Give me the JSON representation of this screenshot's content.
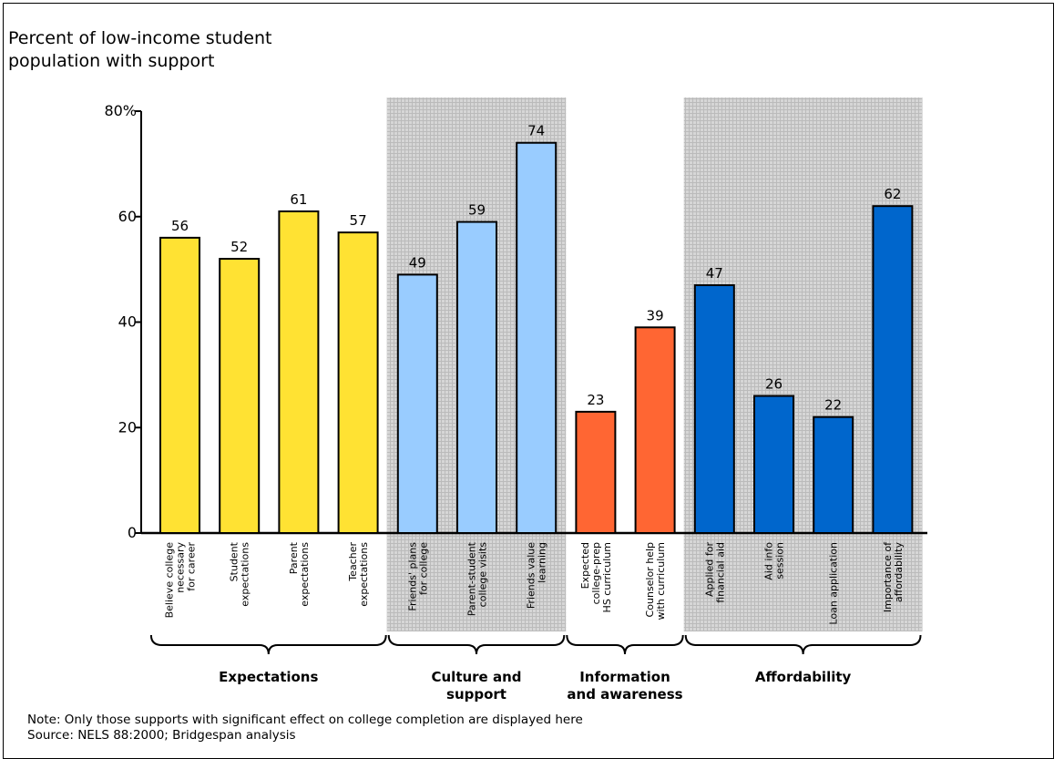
{
  "chart_data": {
    "type": "bar",
    "ylabel": "Percent of low-income student population with support",
    "ylim": [
      0,
      80
    ],
    "yticks": [
      {
        "value": 0,
        "label": "0"
      },
      {
        "value": 20,
        "label": "20"
      },
      {
        "value": 40,
        "label": "40"
      },
      {
        "value": 60,
        "label": "60"
      },
      {
        "value": 80,
        "label": "80%"
      }
    ],
    "categories": [
      {
        "lines": [
          "Believe college",
          "necessary",
          "for career"
        ],
        "value": 56,
        "group": "Expectations"
      },
      {
        "lines": [
          "Student",
          "expectations"
        ],
        "value": 52,
        "group": "Expectations"
      },
      {
        "lines": [
          "Parent",
          "expectations"
        ],
        "value": 61,
        "group": "Expectations"
      },
      {
        "lines": [
          "Teacher",
          "expectations"
        ],
        "value": 57,
        "group": "Expectations"
      },
      {
        "lines": [
          "Friends' plans",
          "for college"
        ],
        "value": 49,
        "group": "Culture and support"
      },
      {
        "lines": [
          "Parent-student",
          "college visits"
        ],
        "value": 59,
        "group": "Culture and support"
      },
      {
        "lines": [
          "Friends value",
          "learning"
        ],
        "value": 74,
        "group": "Culture and support"
      },
      {
        "lines": [
          "Expected",
          "college-prep",
          "HS curriculum"
        ],
        "value": 23,
        "group": "Information and awareness"
      },
      {
        "lines": [
          "Counselor help",
          "with curriculum"
        ],
        "value": 39,
        "group": "Information and awareness"
      },
      {
        "lines": [
          "Applied for",
          "financial aid"
        ],
        "value": 47,
        "group": "Affordability"
      },
      {
        "lines": [
          "Aid info",
          "session"
        ],
        "value": 26,
        "group": "Affordability"
      },
      {
        "lines": [
          "Loan application"
        ],
        "value": 22,
        "group": "Affordability"
      },
      {
        "lines": [
          "Importance of",
          "affordability"
        ],
        "value": 62,
        "group": "Affordability"
      }
    ],
    "groups": [
      {
        "lines": [
          "Expectations"
        ],
        "color": "#ffe233",
        "shaded": false
      },
      {
        "lines": [
          "Culture and",
          "support"
        ],
        "color": "#99ccff",
        "shaded": true
      },
      {
        "lines": [
          "Information",
          "and awareness"
        ],
        "color": "#ff6633",
        "shaded": false
      },
      {
        "lines": [
          "Affordability"
        ],
        "color": "#0066cc",
        "shaded": true
      }
    ],
    "grid": false
  },
  "footer": {
    "note": "Note: Only those supports with significant effect on college completion are displayed here",
    "source": "Source: NELS 88:2000; Bridgespan analysis"
  }
}
